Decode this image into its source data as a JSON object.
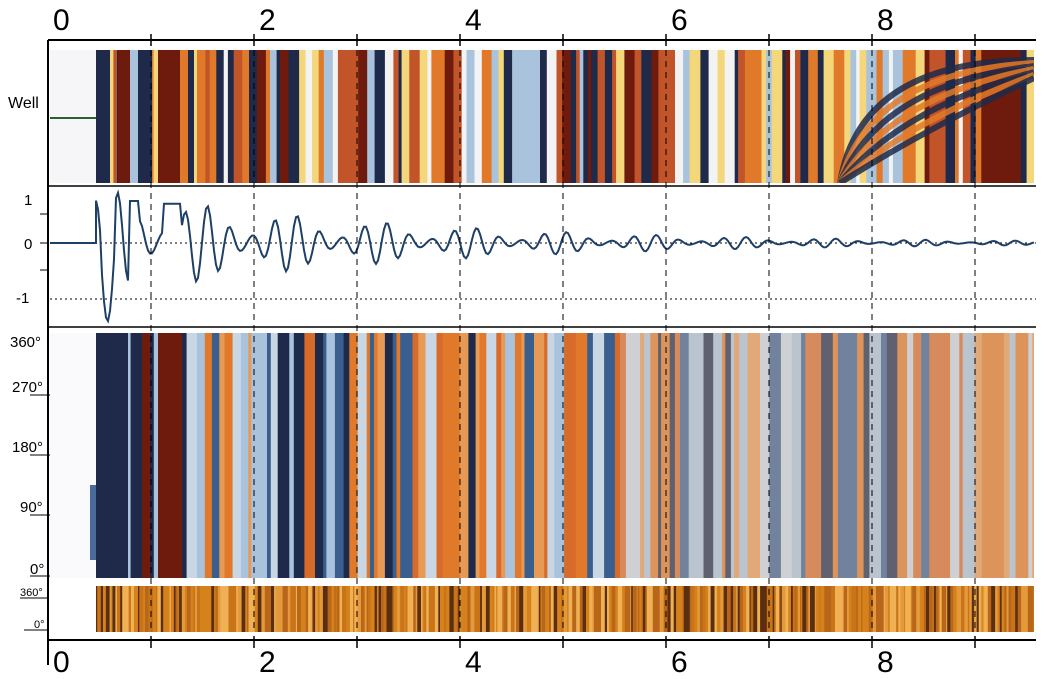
{
  "figure": {
    "top_axis_labels": [
      "0",
      "2",
      "4",
      "6",
      "8"
    ],
    "bottom_axis_labels": [
      "0",
      "2",
      "4",
      "6",
      "8"
    ],
    "well_label": "Well",
    "trace_y_labels": [
      "1",
      "0",
      "-1"
    ],
    "angle_labels": [
      "360°",
      "270°",
      "180°",
      "90°",
      "0°"
    ],
    "log_labels": [
      "360°",
      "0°"
    ]
  },
  "colors": {
    "dark_navy": "#1f2a4a",
    "dark_red": "#6e1a0c",
    "orange": "#e07a2a",
    "light_blue": "#a9c3dc",
    "yellow": "#f3d77a",
    "trace_line": "#1e3f66",
    "log_copper": "#d5811c"
  }
}
